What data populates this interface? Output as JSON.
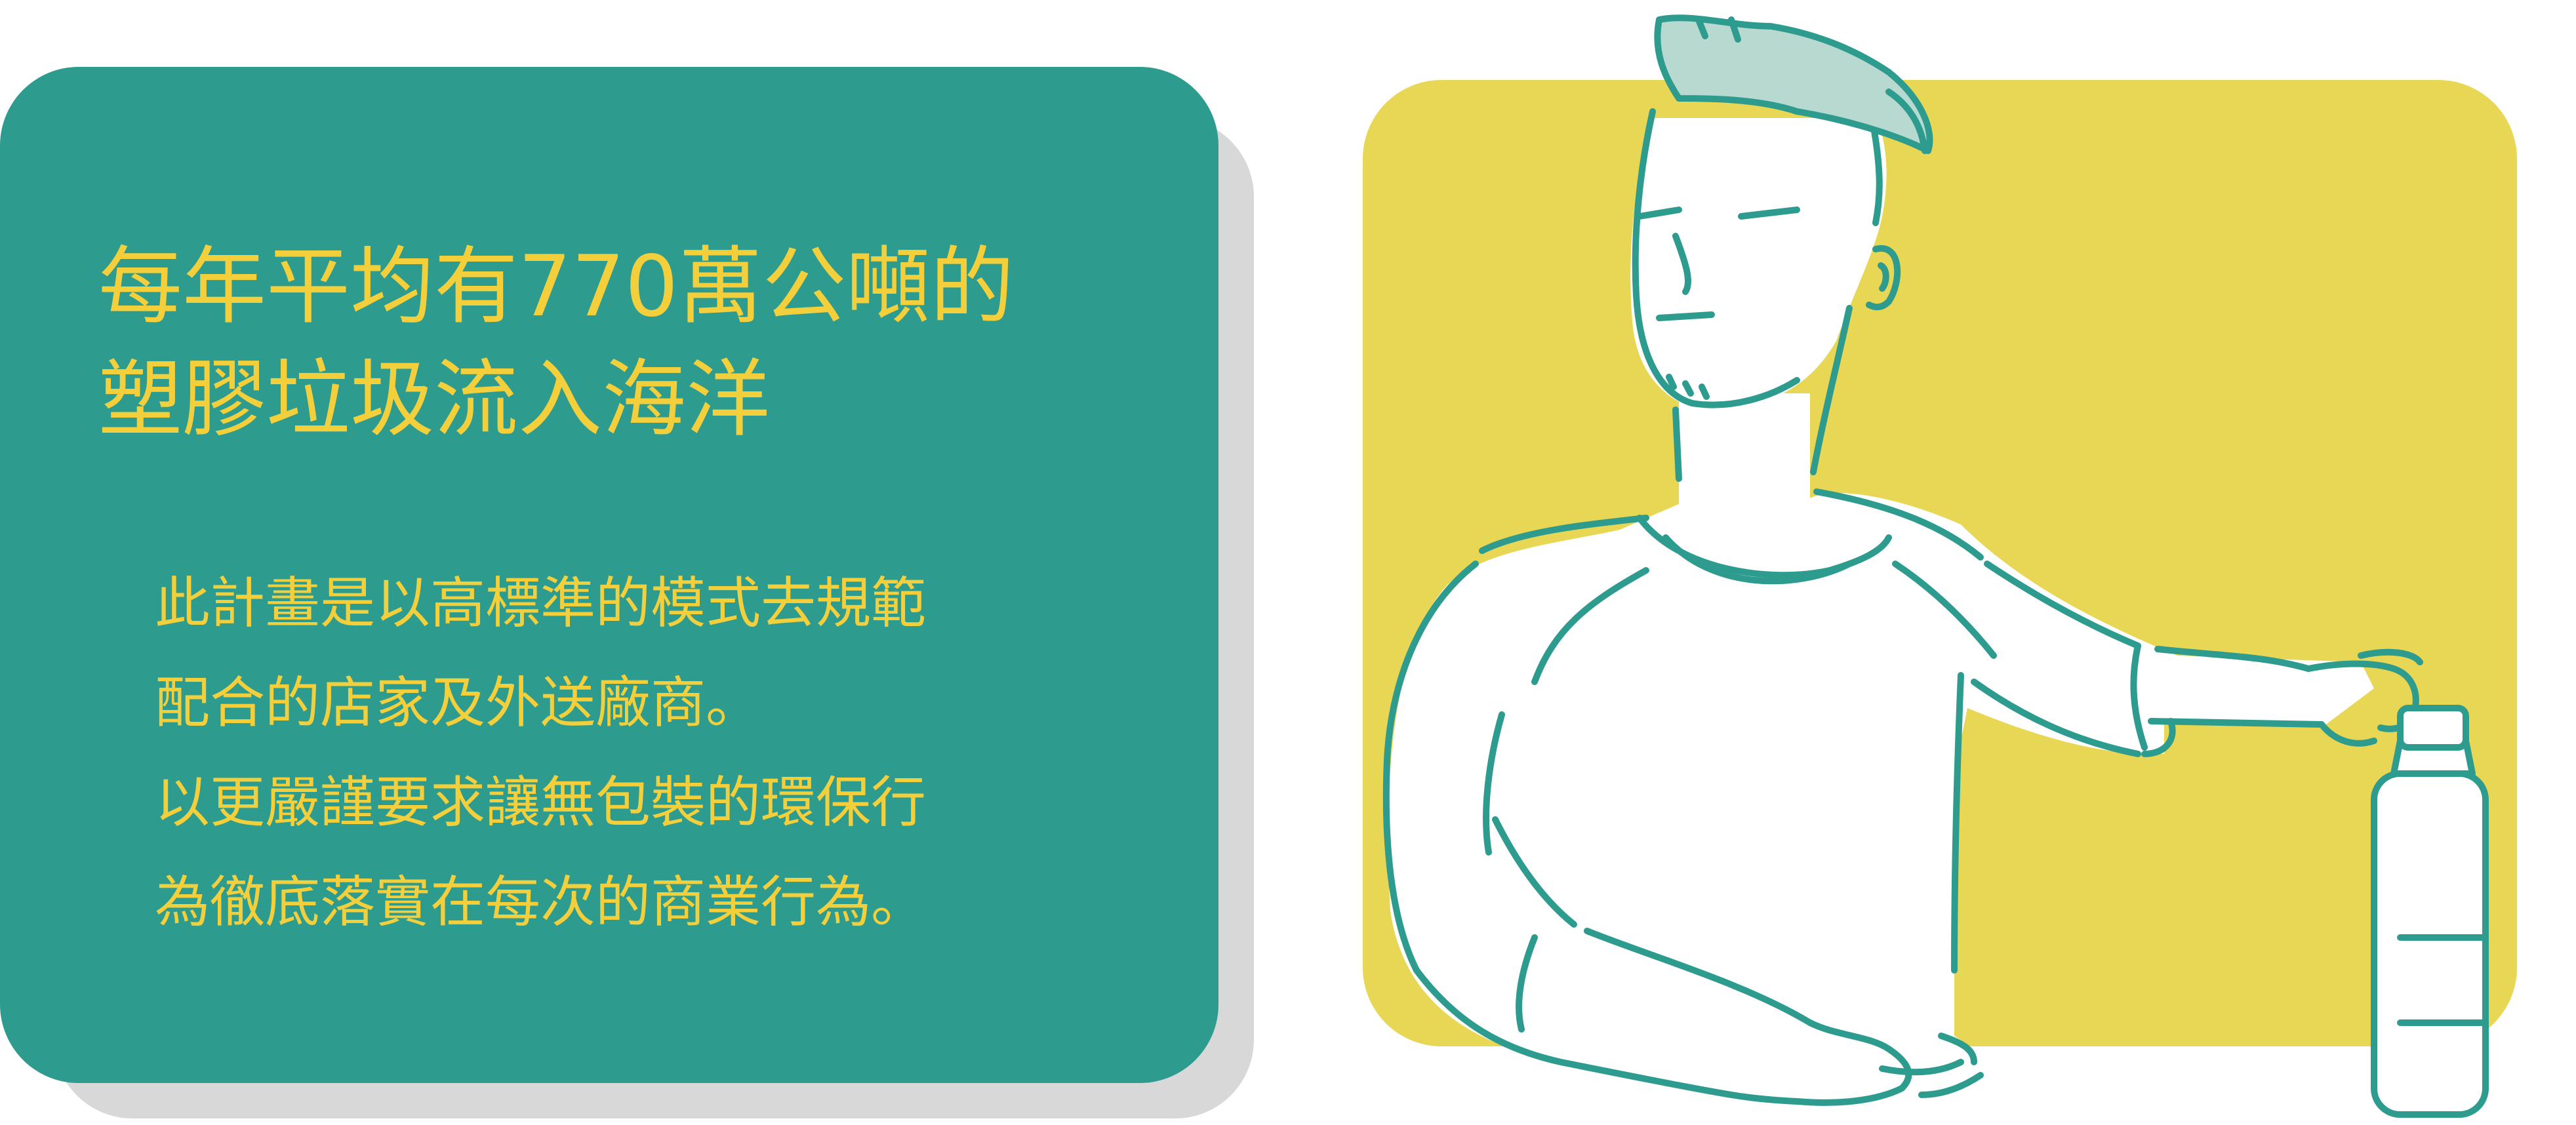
{
  "headline": {
    "line1": "每年平均有770萬公噸的",
    "line2": "塑膠垃圾流入海洋"
  },
  "body": {
    "line1": "此計畫是以高標準的模式去規範",
    "line2": "配合的店家及外送廠商。",
    "line3": "以更嚴謹要求讓無包裝的環保行",
    "line4": "為徹底落實在每次的商業行為。"
  },
  "colors": {
    "card": "#2e9b8f",
    "text": "#f4cf3c",
    "shadow": "#d9d8d8",
    "yellow_panel": "#e8d655",
    "line": "#2e9b8f",
    "hair": "#b7d9cf"
  },
  "illustration": {
    "subject": "man-pressing-spray-bottle",
    "icons": [
      "spray-bottle-icon"
    ]
  }
}
